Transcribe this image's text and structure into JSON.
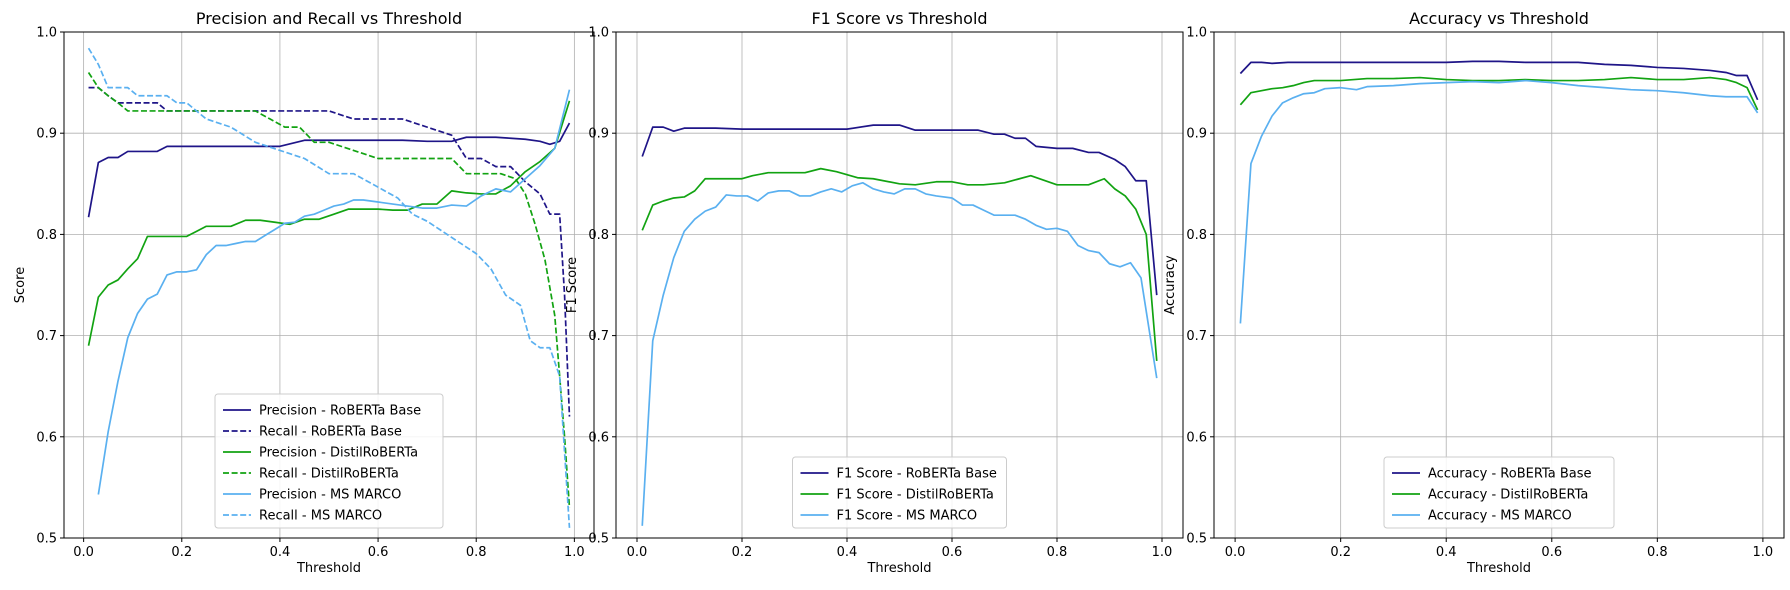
{
  "colors": {
    "roberta": "#1f1588",
    "distil": "#12a312",
    "msmarco": "#5ab0f0",
    "grid": "#b0b0b0",
    "frame": "#000000"
  },
  "chart_data": [
    {
      "type": "line",
      "title": "Precision and Recall vs Threshold",
      "xlabel": "Threshold",
      "ylabel": "Score",
      "xlim": [
        -0.04,
        1.04
      ],
      "ylim": [
        0.5,
        1.0
      ],
      "xticks": [
        0.0,
        0.2,
        0.4,
        0.6,
        0.8,
        1.0
      ],
      "xtick_labels": [
        "0.0",
        "0.2",
        "0.4",
        "0.6",
        "0.8",
        "1.0"
      ],
      "yticks": [
        0.5,
        0.6,
        0.7,
        0.8,
        0.9,
        1.0
      ],
      "ytick_labels": [
        "0.5",
        "0.6",
        "0.7",
        "0.8",
        "0.9",
        "1.0"
      ],
      "grid": true,
      "legend_position": "lower-center",
      "series": [
        {
          "name": "Precision - RoBERTa Base",
          "color_key": "roberta",
          "style": "solid",
          "x": [
            0.01,
            0.03,
            0.05,
            0.07,
            0.09,
            0.11,
            0.13,
            0.15,
            0.17,
            0.19,
            0.21,
            0.25,
            0.3,
            0.35,
            0.4,
            0.45,
            0.5,
            0.55,
            0.6,
            0.65,
            0.7,
            0.75,
            0.78,
            0.81,
            0.84,
            0.87,
            0.9,
            0.93,
            0.95,
            0.97,
            0.99
          ],
          "y": [
            0.817,
            0.871,
            0.876,
            0.876,
            0.882,
            0.882,
            0.882,
            0.882,
            0.887,
            0.887,
            0.887,
            0.887,
            0.887,
            0.887,
            0.887,
            0.893,
            0.893,
            0.893,
            0.893,
            0.893,
            0.892,
            0.892,
            0.896,
            0.896,
            0.896,
            0.895,
            0.894,
            0.892,
            0.889,
            0.892,
            0.91
          ]
        },
        {
          "name": "Recall - RoBERTa Base",
          "color_key": "roberta",
          "style": "dashed",
          "x": [
            0.01,
            0.03,
            0.05,
            0.07,
            0.09,
            0.13,
            0.15,
            0.17,
            0.19,
            0.3,
            0.35,
            0.5,
            0.55,
            0.6,
            0.65,
            0.7,
            0.75,
            0.78,
            0.81,
            0.84,
            0.87,
            0.9,
            0.93,
            0.95,
            0.97,
            0.98,
            0.99
          ],
          "y": [
            0.945,
            0.945,
            0.937,
            0.93,
            0.93,
            0.93,
            0.93,
            0.922,
            0.922,
            0.922,
            0.922,
            0.922,
            0.914,
            0.914,
            0.914,
            0.906,
            0.898,
            0.875,
            0.875,
            0.867,
            0.867,
            0.852,
            0.84,
            0.82,
            0.82,
            0.74,
            0.62
          ]
        },
        {
          "name": "Precision - DistilRoBERTa",
          "color_key": "distil",
          "style": "solid",
          "x": [
            0.01,
            0.03,
            0.05,
            0.07,
            0.09,
            0.11,
            0.13,
            0.15,
            0.17,
            0.19,
            0.21,
            0.23,
            0.25,
            0.27,
            0.3,
            0.33,
            0.36,
            0.39,
            0.42,
            0.45,
            0.48,
            0.51,
            0.54,
            0.57,
            0.6,
            0.63,
            0.66,
            0.69,
            0.72,
            0.75,
            0.78,
            0.81,
            0.84,
            0.87,
            0.9,
            0.93,
            0.96,
            0.99
          ],
          "y": [
            0.69,
            0.738,
            0.75,
            0.755,
            0.766,
            0.776,
            0.798,
            0.798,
            0.798,
            0.798,
            0.798,
            0.803,
            0.808,
            0.808,
            0.808,
            0.814,
            0.814,
            0.812,
            0.81,
            0.815,
            0.815,
            0.82,
            0.825,
            0.825,
            0.825,
            0.824,
            0.824,
            0.83,
            0.83,
            0.843,
            0.841,
            0.84,
            0.84,
            0.848,
            0.862,
            0.872,
            0.885,
            0.932
          ]
        },
        {
          "name": "Recall - DistilRoBERTa",
          "color_key": "distil",
          "style": "dashed",
          "x": [
            0.01,
            0.03,
            0.05,
            0.07,
            0.09,
            0.11,
            0.13,
            0.15,
            0.2,
            0.25,
            0.3,
            0.35,
            0.38,
            0.41,
            0.44,
            0.47,
            0.5,
            0.55,
            0.6,
            0.63,
            0.66,
            0.7,
            0.75,
            0.78,
            0.81,
            0.85,
            0.88,
            0.9,
            0.92,
            0.94,
            0.96,
            0.98,
            0.99
          ],
          "y": [
            0.96,
            0.945,
            0.937,
            0.93,
            0.922,
            0.922,
            0.922,
            0.922,
            0.922,
            0.922,
            0.922,
            0.922,
            0.914,
            0.906,
            0.906,
            0.891,
            0.891,
            0.883,
            0.875,
            0.875,
            0.875,
            0.875,
            0.875,
            0.86,
            0.86,
            0.86,
            0.855,
            0.84,
            0.81,
            0.775,
            0.72,
            0.6,
            0.53
          ]
        },
        {
          "name": "Precision - MS MARCO",
          "color_key": "msmarco",
          "style": "solid",
          "x": [
            0.03,
            0.05,
            0.07,
            0.09,
            0.11,
            0.13,
            0.15,
            0.17,
            0.19,
            0.21,
            0.23,
            0.25,
            0.27,
            0.29,
            0.31,
            0.33,
            0.35,
            0.37,
            0.39,
            0.41,
            0.43,
            0.45,
            0.47,
            0.49,
            0.51,
            0.53,
            0.55,
            0.57,
            0.6,
            0.63,
            0.66,
            0.69,
            0.72,
            0.75,
            0.78,
            0.81,
            0.84,
            0.87,
            0.9,
            0.93,
            0.96,
            0.99
          ],
          "y": [
            0.543,
            0.605,
            0.655,
            0.698,
            0.722,
            0.736,
            0.741,
            0.76,
            0.763,
            0.763,
            0.765,
            0.78,
            0.789,
            0.789,
            0.791,
            0.793,
            0.793,
            0.799,
            0.805,
            0.811,
            0.812,
            0.818,
            0.82,
            0.824,
            0.828,
            0.83,
            0.834,
            0.834,
            0.832,
            0.83,
            0.828,
            0.826,
            0.826,
            0.829,
            0.828,
            0.838,
            0.845,
            0.842,
            0.855,
            0.868,
            0.885,
            0.943
          ]
        },
        {
          "name": "Recall - MS MARCO",
          "color_key": "msmarco",
          "style": "dashed",
          "x": [
            0.01,
            0.03,
            0.05,
            0.07,
            0.09,
            0.11,
            0.13,
            0.15,
            0.17,
            0.19,
            0.21,
            0.25,
            0.3,
            0.35,
            0.4,
            0.45,
            0.5,
            0.55,
            0.58,
            0.61,
            0.64,
            0.67,
            0.7,
            0.75,
            0.8,
            0.83,
            0.86,
            0.89,
            0.91,
            0.93,
            0.95,
            0.97,
            0.99
          ],
          "y": [
            0.984,
            0.968,
            0.945,
            0.945,
            0.945,
            0.937,
            0.937,
            0.937,
            0.937,
            0.93,
            0.93,
            0.914,
            0.906,
            0.891,
            0.883,
            0.875,
            0.86,
            0.86,
            0.852,
            0.844,
            0.836,
            0.82,
            0.813,
            0.797,
            0.781,
            0.766,
            0.74,
            0.73,
            0.695,
            0.688,
            0.688,
            0.66,
            0.51
          ]
        }
      ]
    },
    {
      "type": "line",
      "title": "F1 Score vs Threshold",
      "xlabel": "Threshold",
      "ylabel": "F1 Score",
      "xlim": [
        -0.04,
        1.04
      ],
      "ylim": [
        0.5,
        1.0
      ],
      "xticks": [
        0.0,
        0.2,
        0.4,
        0.6,
        0.8,
        1.0
      ],
      "xtick_labels": [
        "0.0",
        "0.2",
        "0.4",
        "0.6",
        "0.8",
        "1.0"
      ],
      "yticks": [
        0.5,
        0.6,
        0.7,
        0.8,
        0.9,
        1.0
      ],
      "ytick_labels": [
        "0.5",
        "0.6",
        "0.7",
        "0.8",
        "0.9",
        "1.0"
      ],
      "grid": true,
      "legend_position": "lower-center",
      "series": [
        {
          "name": "F1 Score - RoBERTa Base",
          "color_key": "roberta",
          "style": "solid",
          "x": [
            0.01,
            0.03,
            0.05,
            0.07,
            0.09,
            0.11,
            0.15,
            0.2,
            0.3,
            0.4,
            0.45,
            0.5,
            0.53,
            0.6,
            0.65,
            0.68,
            0.7,
            0.72,
            0.74,
            0.76,
            0.8,
            0.83,
            0.86,
            0.88,
            0.91,
            0.93,
            0.95,
            0.97,
            0.99
          ],
          "y": [
            0.877,
            0.906,
            0.906,
            0.902,
            0.905,
            0.905,
            0.905,
            0.904,
            0.904,
            0.904,
            0.908,
            0.908,
            0.903,
            0.903,
            0.903,
            0.899,
            0.899,
            0.895,
            0.895,
            0.887,
            0.885,
            0.885,
            0.881,
            0.881,
            0.874,
            0.867,
            0.853,
            0.853,
            0.74
          ]
        },
        {
          "name": "F1 Score - DistilRoBERTa",
          "color_key": "distil",
          "style": "solid",
          "x": [
            0.01,
            0.03,
            0.05,
            0.07,
            0.09,
            0.11,
            0.13,
            0.15,
            0.2,
            0.22,
            0.25,
            0.3,
            0.32,
            0.35,
            0.38,
            0.42,
            0.45,
            0.5,
            0.53,
            0.57,
            0.6,
            0.63,
            0.66,
            0.7,
            0.75,
            0.8,
            0.83,
            0.86,
            0.89,
            0.91,
            0.93,
            0.95,
            0.97,
            0.99
          ],
          "y": [
            0.804,
            0.829,
            0.833,
            0.836,
            0.837,
            0.843,
            0.855,
            0.855,
            0.855,
            0.858,
            0.861,
            0.861,
            0.861,
            0.865,
            0.862,
            0.856,
            0.855,
            0.85,
            0.849,
            0.852,
            0.852,
            0.849,
            0.849,
            0.851,
            0.858,
            0.849,
            0.849,
            0.849,
            0.855,
            0.845,
            0.838,
            0.825,
            0.8,
            0.675
          ]
        },
        {
          "name": "F1 Score - MS MARCO",
          "color_key": "msmarco",
          "style": "solid",
          "x": [
            0.01,
            0.03,
            0.05,
            0.07,
            0.09,
            0.11,
            0.13,
            0.15,
            0.17,
            0.19,
            0.21,
            0.23,
            0.25,
            0.27,
            0.29,
            0.31,
            0.33,
            0.35,
            0.37,
            0.39,
            0.41,
            0.43,
            0.45,
            0.47,
            0.49,
            0.51,
            0.53,
            0.55,
            0.57,
            0.6,
            0.62,
            0.64,
            0.66,
            0.68,
            0.7,
            0.72,
            0.74,
            0.76,
            0.78,
            0.8,
            0.82,
            0.84,
            0.86,
            0.88,
            0.9,
            0.92,
            0.94,
            0.96,
            0.99
          ],
          "y": [
            0.512,
            0.695,
            0.74,
            0.777,
            0.803,
            0.815,
            0.823,
            0.827,
            0.839,
            0.838,
            0.838,
            0.833,
            0.841,
            0.843,
            0.843,
            0.838,
            0.838,
            0.842,
            0.845,
            0.842,
            0.848,
            0.851,
            0.845,
            0.842,
            0.84,
            0.845,
            0.845,
            0.84,
            0.838,
            0.836,
            0.829,
            0.829,
            0.824,
            0.819,
            0.819,
            0.819,
            0.815,
            0.809,
            0.805,
            0.806,
            0.803,
            0.789,
            0.784,
            0.782,
            0.771,
            0.768,
            0.772,
            0.757,
            0.658
          ]
        }
      ]
    },
    {
      "type": "line",
      "title": "Accuracy vs Threshold",
      "xlabel": "Threshold",
      "ylabel": "Accuracy",
      "xlim": [
        -0.04,
        1.04
      ],
      "ylim": [
        0.5,
        1.0
      ],
      "xticks": [
        0.0,
        0.2,
        0.4,
        0.6,
        0.8,
        1.0
      ],
      "xtick_labels": [
        "0.0",
        "0.2",
        "0.4",
        "0.6",
        "0.8",
        "1.0"
      ],
      "yticks": [
        0.5,
        0.6,
        0.7,
        0.8,
        0.9,
        1.0
      ],
      "ytick_labels": [
        "0.5",
        "0.6",
        "0.7",
        "0.8",
        "0.9",
        "1.0"
      ],
      "grid": true,
      "legend_position": "lower-center",
      "series": [
        {
          "name": "Accuracy - RoBERTa Base",
          "color_key": "roberta",
          "style": "solid",
          "x": [
            0.01,
            0.03,
            0.05,
            0.07,
            0.1,
            0.2,
            0.3,
            0.4,
            0.45,
            0.5,
            0.55,
            0.6,
            0.65,
            0.7,
            0.75,
            0.8,
            0.85,
            0.9,
            0.93,
            0.95,
            0.97,
            0.99
          ],
          "y": [
            0.959,
            0.97,
            0.97,
            0.969,
            0.97,
            0.97,
            0.97,
            0.97,
            0.971,
            0.971,
            0.97,
            0.97,
            0.97,
            0.968,
            0.967,
            0.965,
            0.964,
            0.962,
            0.96,
            0.957,
            0.957,
            0.933
          ]
        },
        {
          "name": "Accuracy - DistilRoBERTa",
          "color_key": "distil",
          "style": "solid",
          "x": [
            0.01,
            0.03,
            0.05,
            0.07,
            0.09,
            0.11,
            0.13,
            0.15,
            0.2,
            0.25,
            0.3,
            0.35,
            0.4,
            0.45,
            0.5,
            0.55,
            0.6,
            0.65,
            0.7,
            0.75,
            0.8,
            0.85,
            0.9,
            0.93,
            0.95,
            0.97,
            0.99
          ],
          "y": [
            0.928,
            0.94,
            0.942,
            0.944,
            0.945,
            0.947,
            0.95,
            0.952,
            0.952,
            0.954,
            0.954,
            0.955,
            0.953,
            0.952,
            0.952,
            0.953,
            0.952,
            0.952,
            0.953,
            0.955,
            0.953,
            0.953,
            0.955,
            0.953,
            0.95,
            0.945,
            0.923
          ]
        },
        {
          "name": "Accuracy - MS MARCO",
          "color_key": "msmarco",
          "style": "solid",
          "x": [
            0.01,
            0.03,
            0.05,
            0.07,
            0.09,
            0.11,
            0.13,
            0.15,
            0.17,
            0.2,
            0.23,
            0.25,
            0.3,
            0.35,
            0.4,
            0.45,
            0.5,
            0.55,
            0.6,
            0.65,
            0.7,
            0.75,
            0.8,
            0.85,
            0.9,
            0.93,
            0.95,
            0.97,
            0.99
          ],
          "y": [
            0.712,
            0.87,
            0.897,
            0.917,
            0.93,
            0.935,
            0.939,
            0.94,
            0.944,
            0.945,
            0.943,
            0.946,
            0.947,
            0.949,
            0.95,
            0.951,
            0.95,
            0.952,
            0.95,
            0.947,
            0.945,
            0.943,
            0.942,
            0.94,
            0.937,
            0.936,
            0.936,
            0.936,
            0.92
          ]
        }
      ]
    }
  ]
}
